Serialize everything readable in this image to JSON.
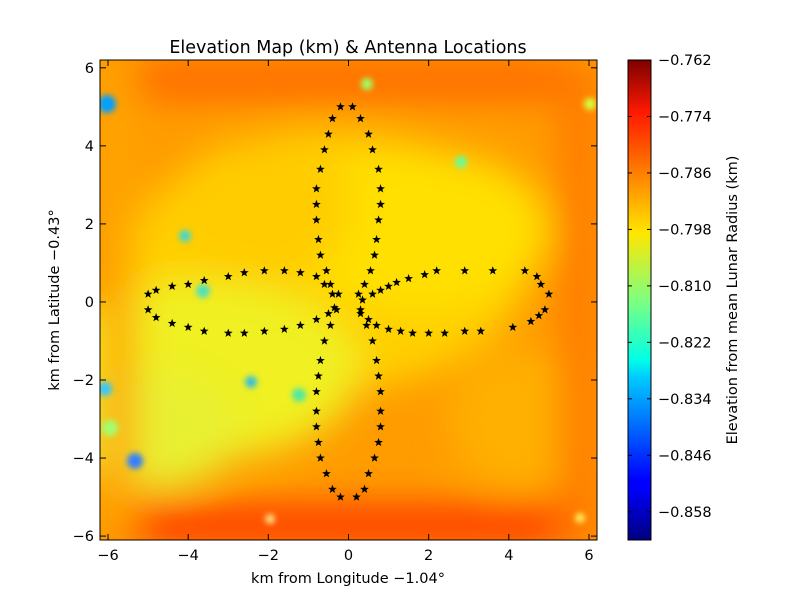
{
  "chart_data": {
    "type": "heatmap",
    "title": "Elevation Map (km) & Antenna Locations",
    "xlabel": "km from Longitude −1.04°",
    "ylabel": "km from Latitude −0.43°",
    "xlim": [
      -6.2,
      6.2
    ],
    "ylim": [
      -6.1,
      6.2
    ],
    "x_ticks": [
      "−6",
      "−4",
      "−2",
      "0",
      "2",
      "4",
      "6"
    ],
    "x_tick_values": [
      -6,
      -4,
      -2,
      0,
      2,
      4,
      6
    ],
    "y_ticks": [
      "6",
      "4",
      "2",
      "0",
      "−2",
      "−4",
      "−6"
    ],
    "y_tick_values": [
      6,
      4,
      2,
      0,
      -2,
      -4,
      -6
    ],
    "colorbar": {
      "label": "Elevation from mean Lunar Radius (km)",
      "range": [
        -0.864,
        -0.762
      ],
      "colormap": "jet",
      "ticks": [
        "−0.762",
        "−0.774",
        "−0.786",
        "−0.798",
        "−0.810",
        "−0.822",
        "−0.834",
        "−0.846",
        "−0.858"
      ],
      "tick_values": [
        -0.762,
        -0.774,
        -0.786,
        -0.798,
        -0.81,
        -0.822,
        -0.834,
        -0.846,
        -0.858
      ]
    },
    "heatmap_features": [
      {
        "x": -5.9,
        "y": 4.9,
        "value": -0.848
      },
      {
        "x": -5.1,
        "y": -4.1,
        "value": -0.85
      },
      {
        "x": -5.8,
        "y": -2.3,
        "value": -0.835
      },
      {
        "x": -2.3,
        "y": -2.0,
        "value": -0.835
      },
      {
        "x": -1.2,
        "y": -2.5,
        "value": -0.822
      },
      {
        "x": -3.7,
        "y": 0.2,
        "value": -0.823
      },
      {
        "x": -4.0,
        "y": 1.6,
        "value": -0.823
      },
      {
        "x": 2.9,
        "y": 3.5,
        "value": -0.815
      },
      {
        "x": 0.5,
        "y": 5.4,
        "value": -0.81
      },
      {
        "x": 5.9,
        "y": 5.0,
        "value": -0.81
      },
      {
        "x": -5.9,
        "y": -3.2,
        "value": -0.812
      },
      {
        "x": 5.8,
        "y": -5.5,
        "value": -0.792
      },
      {
        "x": -2.0,
        "y": -5.5,
        "value": -0.8
      }
    ],
    "series": [
      {
        "type": "scatter",
        "marker": "star",
        "color": "#000000",
        "points": [
          [
            5.0,
            0.2
          ],
          [
            4.9,
            -0.2
          ],
          [
            4.8,
            0.45
          ],
          [
            4.75,
            -0.35
          ],
          [
            4.7,
            0.65
          ],
          [
            4.55,
            -0.5
          ],
          [
            4.4,
            0.8
          ],
          [
            4.1,
            -0.65
          ],
          [
            3.6,
            0.8
          ],
          [
            3.3,
            -0.75
          ],
          [
            2.9,
            0.8
          ],
          [
            2.9,
            -0.75
          ],
          [
            2.2,
            0.8
          ],
          [
            2.4,
            -0.8
          ],
          [
            1.9,
            0.7
          ],
          [
            2.0,
            -0.8
          ],
          [
            1.5,
            0.6
          ],
          [
            1.6,
            -0.8
          ],
          [
            1.2,
            0.5
          ],
          [
            1.3,
            -0.75
          ],
          [
            1.0,
            0.4
          ],
          [
            1.0,
            -0.7
          ],
          [
            0.8,
            0.3
          ],
          [
            0.7,
            -0.6
          ],
          [
            0.6,
            0.2
          ],
          [
            0.5,
            -0.45
          ],
          [
            0.35,
            0.05
          ],
          [
            0.3,
            -0.3
          ],
          [
            -5.0,
            0.2
          ],
          [
            -5.0,
            -0.2
          ],
          [
            -4.8,
            0.3
          ],
          [
            -4.8,
            -0.4
          ],
          [
            -4.4,
            0.4
          ],
          [
            -4.4,
            -0.55
          ],
          [
            -4.0,
            0.45
          ],
          [
            -4.0,
            -0.65
          ],
          [
            -3.6,
            0.55
          ],
          [
            -3.6,
            -0.75
          ],
          [
            -3.0,
            0.65
          ],
          [
            -3.0,
            -0.8
          ],
          [
            -2.6,
            0.75
          ],
          [
            -2.6,
            -0.8
          ],
          [
            -2.1,
            0.8
          ],
          [
            -2.1,
            -0.75
          ],
          [
            -1.6,
            0.8
          ],
          [
            -1.6,
            -0.7
          ],
          [
            -1.2,
            0.75
          ],
          [
            -1.2,
            -0.6
          ],
          [
            -0.8,
            0.65
          ],
          [
            -0.8,
            -0.45
          ],
          [
            -0.6,
            0.45
          ],
          [
            -0.5,
            -0.3
          ],
          [
            -0.4,
            0.2
          ],
          [
            -0.35,
            -0.15
          ],
          [
            0.1,
            5.0
          ],
          [
            -0.2,
            5.0
          ],
          [
            0.3,
            4.7
          ],
          [
            -0.4,
            4.7
          ],
          [
            0.5,
            4.3
          ],
          [
            -0.5,
            4.3
          ],
          [
            0.6,
            3.9
          ],
          [
            -0.6,
            3.9
          ],
          [
            0.75,
            3.4
          ],
          [
            -0.7,
            3.4
          ],
          [
            0.8,
            2.9
          ],
          [
            -0.8,
            2.9
          ],
          [
            0.8,
            2.5
          ],
          [
            -0.8,
            2.5
          ],
          [
            0.75,
            2.1
          ],
          [
            -0.8,
            2.1
          ],
          [
            0.7,
            1.6
          ],
          [
            -0.75,
            1.6
          ],
          [
            0.65,
            1.2
          ],
          [
            -0.7,
            1.2
          ],
          [
            0.55,
            0.8
          ],
          [
            -0.55,
            0.8
          ],
          [
            0.4,
            0.45
          ],
          [
            -0.45,
            0.45
          ],
          [
            0.25,
            0.2
          ],
          [
            -0.25,
            0.2
          ],
          [
            0.2,
            -5.0
          ],
          [
            -0.2,
            -5.0
          ],
          [
            0.4,
            -4.8
          ],
          [
            -0.4,
            -4.8
          ],
          [
            0.5,
            -4.4
          ],
          [
            -0.55,
            -4.4
          ],
          [
            0.65,
            -4.0
          ],
          [
            -0.7,
            -4.0
          ],
          [
            0.75,
            -3.6
          ],
          [
            -0.75,
            -3.6
          ],
          [
            0.8,
            -3.2
          ],
          [
            -0.8,
            -3.2
          ],
          [
            0.8,
            -2.8
          ],
          [
            -0.8,
            -2.8
          ],
          [
            0.8,
            -2.3
          ],
          [
            -0.8,
            -2.3
          ],
          [
            0.75,
            -1.9
          ],
          [
            -0.75,
            -1.9
          ],
          [
            0.7,
            -1.5
          ],
          [
            -0.7,
            -1.5
          ],
          [
            0.6,
            -1.0
          ],
          [
            -0.6,
            -1.0
          ],
          [
            0.45,
            -0.6
          ],
          [
            -0.45,
            -0.6
          ],
          [
            0.3,
            -0.2
          ],
          [
            -0.3,
            -0.2
          ]
        ]
      }
    ]
  }
}
